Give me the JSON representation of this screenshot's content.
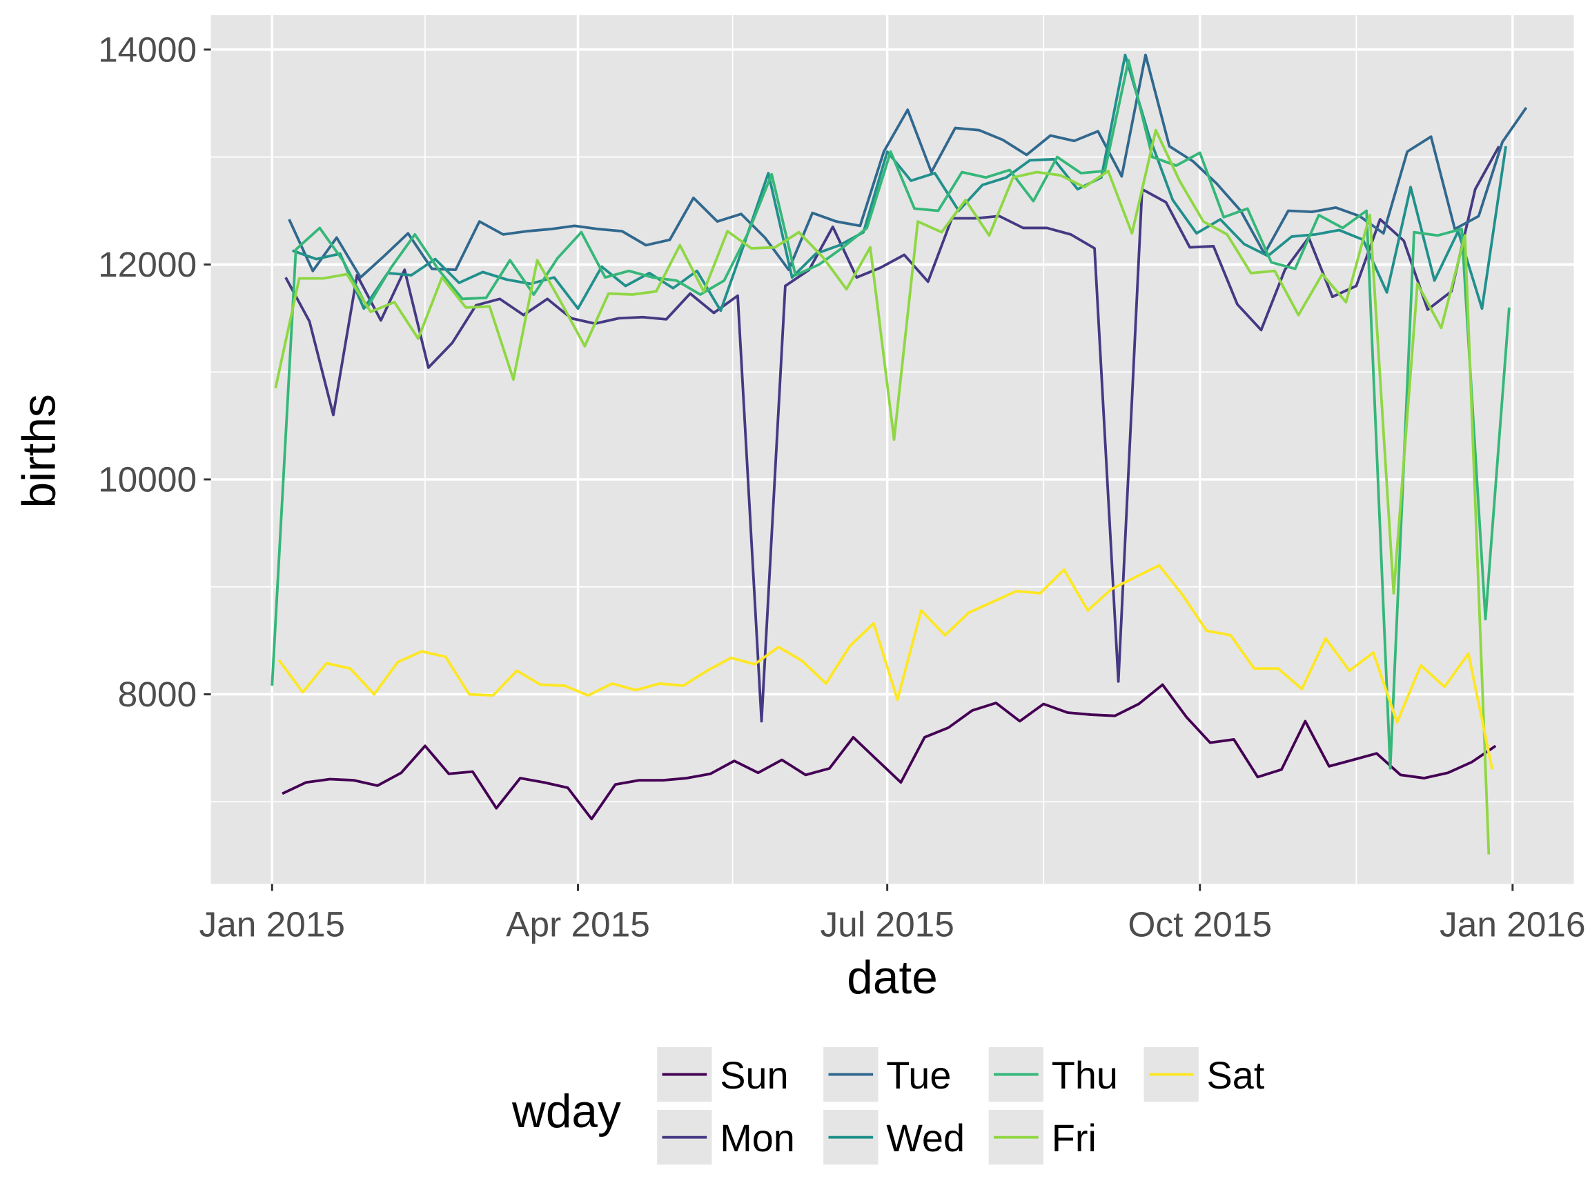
{
  "chart_data": {
    "type": "line",
    "title": "",
    "xlabel": "date",
    "ylabel": "births",
    "x_ticks": [
      {
        "label": "Jan 2015",
        "day": 0
      },
      {
        "label": "Apr 2015",
        "day": 90
      },
      {
        "label": "Jul 2015",
        "day": 181
      },
      {
        "label": "Oct 2015",
        "day": 273
      },
      {
        "label": "Jan 2016",
        "day": 365
      }
    ],
    "x_minor_days": [
      45,
      135.5,
      227,
      319
    ],
    "y_ticks": [
      8000,
      10000,
      12000,
      14000
    ],
    "y_minor": [
      7000,
      9000,
      11000,
      13000
    ],
    "ylim": [
      6236,
      14320
    ],
    "xlim_days": [
      -18,
      383
    ],
    "grid": true,
    "x_unit": "days since 2015-01-01, weekly points",
    "legend": {
      "title": "wday",
      "placement": "bottom"
    },
    "series": [
      {
        "name": "Sun",
        "color": "#440154",
        "start_day": 3,
        "values": [
          7076,
          7180,
          7210,
          7200,
          7150,
          7270,
          7520,
          7260,
          7280,
          6940,
          7220,
          7180,
          7130,
          6840,
          7160,
          7200,
          7200,
          7220,
          7260,
          7380,
          7270,
          7390,
          7250,
          7310,
          7600,
          7390,
          7180,
          7600,
          7690,
          7850,
          7920,
          7750,
          7910,
          7830,
          7810,
          7800,
          7910,
          8090,
          7790,
          7550,
          7580,
          7230,
          7300,
          7750,
          7330,
          7390,
          7450,
          7250,
          7220,
          7270,
          7370,
          7520
        ]
      },
      {
        "name": "Mon",
        "color": "#443A83",
        "start_day": 4,
        "values": [
          11880,
          11470,
          10600,
          11900,
          11480,
          11950,
          11040,
          11270,
          11620,
          11680,
          11530,
          11680,
          11500,
          11450,
          11500,
          11510,
          11490,
          11730,
          11550,
          11710,
          7750,
          11800,
          11950,
          12350,
          11880,
          11970,
          12090,
          11840,
          12430,
          12430,
          12450,
          12340,
          12340,
          12280,
          12150,
          8120,
          12700,
          12580,
          12160,
          12170,
          11630,
          11390,
          11950,
          12250,
          11700,
          11800,
          12420,
          12220,
          11580,
          11750,
          12700,
          13100
        ]
      },
      {
        "name": "Tue",
        "color": "#31688E",
        "start_day": 5,
        "values": [
          12420,
          11940,
          12250,
          11880,
          12080,
          12290,
          11960,
          11950,
          12400,
          12280,
          12310,
          12330,
          12360,
          12330,
          12310,
          12180,
          12230,
          12620,
          12400,
          12470,
          12250,
          11950,
          12480,
          12400,
          12360,
          13050,
          13440,
          12860,
          13270,
          13250,
          13160,
          13020,
          13200,
          13150,
          13240,
          12820,
          13950,
          13100,
          12960,
          12750,
          12500,
          12100,
          12500,
          12490,
          12530,
          12450,
          12290,
          13050,
          13190,
          12330,
          12450,
          13140,
          13460
        ]
      },
      {
        "name": "Wed",
        "color": "#21908C",
        "start_day": 6,
        "values": [
          12130,
          12050,
          12100,
          11590,
          11920,
          11900,
          12050,
          11830,
          11930,
          11860,
          11820,
          11880,
          11590,
          11980,
          11800,
          11920,
          11780,
          11940,
          11570,
          12200,
          12850,
          11880,
          12100,
          12180,
          12300,
          13050,
          12780,
          12850,
          12500,
          12740,
          12810,
          12970,
          12980,
          12700,
          12810,
          13950,
          13200,
          12600,
          12290,
          12420,
          12190,
          12080,
          12260,
          12280,
          12320,
          12230,
          11740,
          12720,
          11850,
          12310,
          11590,
          13100
        ]
      },
      {
        "name": "Thu",
        "color": "#35B779",
        "start_day": 0,
        "values": [
          8080,
          12140,
          12340,
          12030,
          11600,
          11970,
          12280,
          11950,
          11680,
          11690,
          12040,
          11720,
          12060,
          12300,
          11880,
          11940,
          11880,
          11850,
          11720,
          11850,
          12290,
          12840,
          11900,
          12000,
          12160,
          12340,
          13050,
          12520,
          12500,
          12860,
          12810,
          12880,
          12590,
          13000,
          12850,
          12870,
          13900,
          13000,
          12920,
          13040,
          12440,
          12520,
          12020,
          11960,
          12460,
          12340,
          12500,
          7310,
          12300,
          12270,
          12330,
          8700,
          11600
        ]
      },
      {
        "name": "Fri",
        "color": "#8FD744",
        "start_day": 1,
        "values": [
          10850,
          11870,
          11870,
          11910,
          11560,
          11650,
          11310,
          11880,
          11600,
          11610,
          10930,
          12040,
          11650,
          11240,
          11730,
          11720,
          11750,
          12180,
          11750,
          12310,
          12150,
          12160,
          12300,
          12070,
          11770,
          12160,
          10370,
          12400,
          12300,
          12600,
          12270,
          12810,
          12860,
          12830,
          12720,
          12870,
          12290,
          13250,
          12780,
          12400,
          12280,
          11920,
          11940,
          11530,
          11910,
          11650,
          12460,
          8940,
          11820,
          11410,
          12270,
          6510
        ]
      },
      {
        "name": "Sat",
        "color": "#FDE725",
        "start_day": 2,
        "values": [
          8320,
          8020,
          8290,
          8240,
          8000,
          8300,
          8400,
          8350,
          8000,
          7990,
          8220,
          8090,
          8080,
          7990,
          8100,
          8040,
          8100,
          8080,
          8220,
          8340,
          8280,
          8440,
          8310,
          8100,
          8450,
          8660,
          7950,
          8780,
          8550,
          8760,
          8860,
          8960,
          8940,
          9160,
          8780,
          8980,
          9090,
          9200,
          8920,
          8590,
          8550,
          8240,
          8240,
          8050,
          8520,
          8220,
          8390,
          7740,
          8270,
          8070,
          8380,
          7300
        ]
      }
    ]
  }
}
